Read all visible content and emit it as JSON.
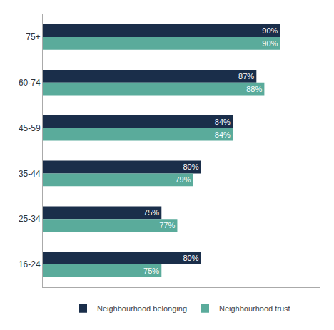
{
  "chart_data": {
    "type": "bar",
    "orientation": "horizontal",
    "categories": [
      "16-24",
      "25-34",
      "35-44",
      "45-59",
      "60-74",
      "75+"
    ],
    "series": [
      {
        "name": "Neighbourhood belonging",
        "color": "#1a2e4a",
        "values": [
          80,
          75,
          80,
          84,
          87,
          90
        ],
        "value_labels": [
          "80%",
          "75%",
          "80%",
          "84%",
          "87%",
          "90%"
        ]
      },
      {
        "name": "Neighbourhood trust",
        "color": "#5aab9b",
        "values": [
          75,
          77,
          79,
          84,
          88,
          90
        ],
        "value_labels": [
          "75%",
          "77%",
          "79%",
          "84%",
          "88%",
          "90%"
        ]
      }
    ],
    "xlim": [
      60,
      95
    ],
    "grid": false,
    "legend": "bottom",
    "data_labels": true,
    "tick_labels": "y"
  }
}
